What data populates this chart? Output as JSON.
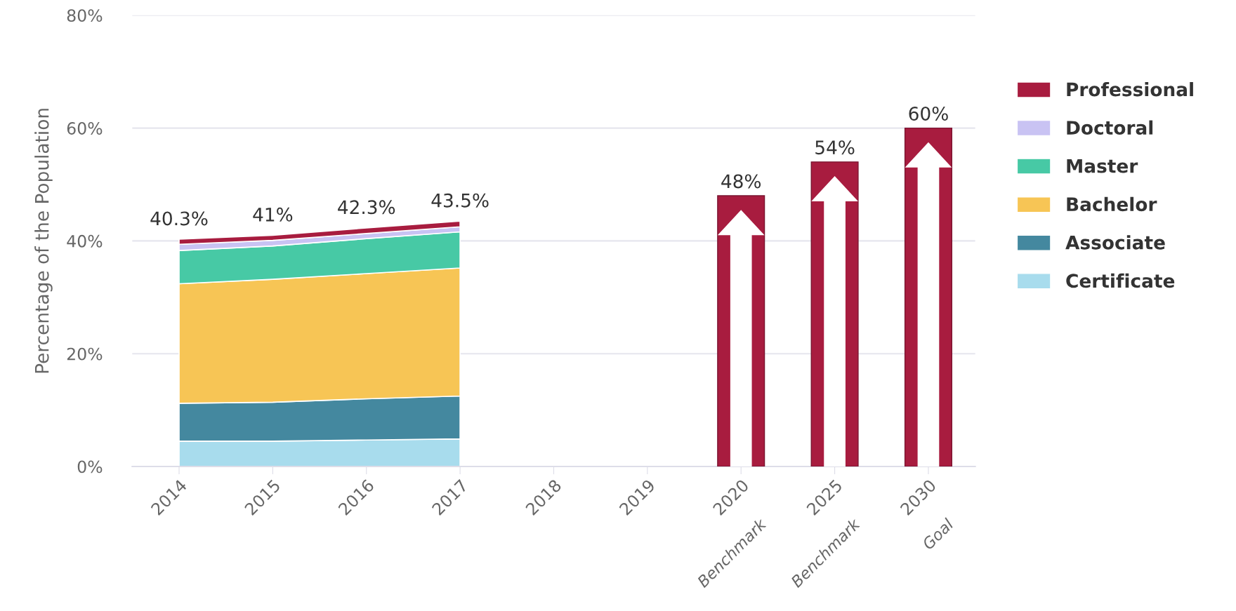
{
  "chart_data": {
    "type": "area",
    "stacked": true,
    "ylabel": "Percentage of the Population",
    "categories": [
      "2014",
      "2015",
      "2016",
      "2017",
      "2018",
      "2019",
      "2020\nBenchmark",
      "2025\nBenchmark",
      "2030\nGoal"
    ],
    "series": [
      {
        "name": "Certificate",
        "color": "#a8dced",
        "values": [
          4.5,
          4.5,
          4.7,
          4.9,
          null,
          null,
          null,
          null,
          null
        ]
      },
      {
        "name": "Associate",
        "color": "#44889f",
        "values": [
          6.7,
          6.9,
          7.3,
          7.6,
          null,
          null,
          null,
          null,
          null
        ]
      },
      {
        "name": "Bachelor",
        "color": "#f7c555",
        "values": [
          21.2,
          21.8,
          22.2,
          22.7,
          null,
          null,
          null,
          null,
          null
        ]
      },
      {
        "name": "Master",
        "color": "#47c9a5",
        "values": [
          5.9,
          5.9,
          6.2,
          6.4,
          null,
          null,
          null,
          null,
          null
        ]
      },
      {
        "name": "Doctoral",
        "color": "#c9c3f3",
        "values": [
          1.1,
          1.0,
          0.9,
          0.9,
          null,
          null,
          null,
          null,
          null
        ]
      },
      {
        "name": "Professional",
        "color": "#a81c3f",
        "values": [
          0.9,
          0.9,
          1.0,
          1.0,
          null,
          null,
          null,
          null,
          null
        ]
      },
      {
        "type": "bar",
        "color": "#a81c3f",
        "values": [
          null,
          null,
          null,
          null,
          null,
          null,
          48,
          54,
          60
        ],
        "value_labels": [
          null,
          null,
          null,
          null,
          null,
          null,
          "48%",
          "54%",
          "60%"
        ]
      }
    ],
    "totals": [
      "40.3%",
      "41%",
      "42.3%",
      "43.5%",
      null,
      null,
      null,
      null,
      null
    ],
    "ylim": [
      0,
      80
    ],
    "yticks": [
      {
        "value": 0,
        "label": "0%"
      },
      {
        "value": 20,
        "label": "20%"
      },
      {
        "value": 40,
        "label": "40%"
      },
      {
        "value": 60,
        "label": "60%"
      },
      {
        "value": 80,
        "label": "80%"
      }
    ],
    "grid": "y",
    "legend": "right"
  }
}
